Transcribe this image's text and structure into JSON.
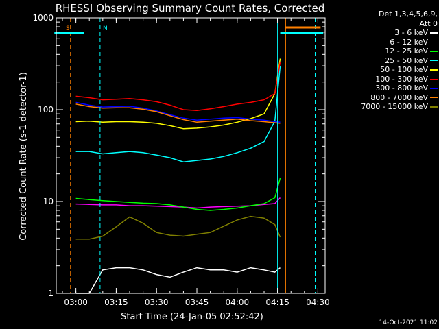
{
  "chart_data": {
    "type": "line",
    "title": "RHESSI Observing Summary Count Rates, Corrected",
    "xlabel": "Start Time (24-Jan-05 02:52:42)",
    "ylabel": "Corrected Count Rate (s-1 detector-1)",
    "ylog": true,
    "ylim": [
      1,
      1000
    ],
    "xlim_minutes": [
      0,
      100
    ],
    "xtick_labels": [
      "03:00",
      "03:15",
      "03:30",
      "03:45",
      "04:00",
      "04:15",
      "04:30"
    ],
    "ytick_labels": [
      "1",
      "10",
      "100",
      "1000"
    ],
    "legend_header": [
      "Det 1,3,4,5,6,9,",
      "Att 0"
    ],
    "legend_position": "right",
    "markers": [
      {
        "label": "S",
        "color": "#ff8000"
      },
      {
        "label": "N",
        "color": "#00ffff"
      }
    ],
    "flag_bars": [
      {
        "color": "#00ffff",
        "from": "02:52",
        "to": "03:03"
      },
      {
        "color": "#00ffff",
        "from": "04:16",
        "to": "04:32"
      },
      {
        "color": "#ff8000",
        "from": "04:18",
        "to": "04:31"
      }
    ],
    "vertical_lines": [
      {
        "time": "02:58",
        "color": "#ff8000",
        "style": "dashed"
      },
      {
        "time": "03:09",
        "color": "#00ffff",
        "style": "dashed"
      },
      {
        "time": "04:15",
        "color": "#00ffff",
        "style": "solid"
      },
      {
        "time": "04:18",
        "color": "#ff8000",
        "style": "solid"
      },
      {
        "time": "04:29",
        "color": "#00ffff",
        "style": "dashed"
      }
    ],
    "x": [
      "03:00",
      "03:05",
      "03:10",
      "03:15",
      "03:20",
      "03:25",
      "03:30",
      "03:35",
      "03:40",
      "03:45",
      "03:50",
      "03:55",
      "04:00",
      "04:05",
      "04:10",
      "04:14",
      "04:16"
    ],
    "series": [
      {
        "name": "3 - 6 keV",
        "color": "#ffffff",
        "values": [
          1,
          1,
          1.8,
          1.9,
          1.9,
          1.8,
          1.6,
          1.5,
          1.7,
          1.9,
          1.8,
          1.8,
          1.7,
          1.9,
          1.8,
          1.7,
          1.9
        ]
      },
      {
        "name": "6 - 12 keV",
        "color": "#ff00ff",
        "values": [
          9.4,
          9.3,
          9.2,
          9.2,
          9.0,
          9.0,
          8.9,
          8.8,
          8.7,
          8.5,
          8.7,
          8.8,
          8.9,
          9.0,
          9.3,
          9.5,
          11
        ]
      },
      {
        "name": "12 - 25 keV",
        "color": "#00ff00",
        "values": [
          10.8,
          10.5,
          10.2,
          10.0,
          9.8,
          9.6,
          9.5,
          9.2,
          8.7,
          8.2,
          8.0,
          8.2,
          8.5,
          9.0,
          9.5,
          11,
          18
        ]
      },
      {
        "name": "25 - 50 keV",
        "color": "#00ffff",
        "values": [
          35,
          35,
          33,
          34,
          35,
          34,
          32,
          30,
          27,
          28,
          29,
          31,
          34,
          38,
          45,
          75,
          300
        ]
      },
      {
        "name": "50 - 100 keV",
        "color": "#ffff00",
        "values": [
          74,
          75,
          73,
          74,
          74,
          73,
          71,
          67,
          62,
          63,
          65,
          68,
          73,
          80,
          90,
          150,
          360
        ]
      },
      {
        "name": "100 - 300 keV",
        "color": "#ff0000",
        "values": [
          140,
          135,
          128,
          130,
          132,
          128,
          122,
          112,
          100,
          98,
          102,
          108,
          115,
          120,
          128,
          150,
          330
        ]
      },
      {
        "name": "300 - 800 keV",
        "color": "#0000ff",
        "values": [
          120,
          112,
          107,
          108,
          109,
          104,
          97,
          88,
          81,
          77,
          79,
          81,
          82,
          79,
          77,
          74,
          73
        ]
      },
      {
        "name": "800 - 7000 keV",
        "color": "#ff8000",
        "values": [
          115,
          108,
          104,
          105,
          105,
          101,
          95,
          86,
          78,
          73,
          75,
          77,
          79,
          76,
          74,
          72,
          71
        ]
      },
      {
        "name": "7000 - 15000 keV",
        "color": "#808000",
        "values": [
          3.9,
          3.9,
          4.2,
          5.3,
          6.8,
          5.8,
          4.6,
          4.3,
          4.2,
          4.4,
          4.6,
          5.4,
          6.3,
          6.9,
          6.6,
          5.6,
          4.1
        ]
      }
    ],
    "timestamp": "14-Oct-2021 11:02",
    "colors": {
      "background": "#000000",
      "axes": "#ffffff"
    }
  }
}
